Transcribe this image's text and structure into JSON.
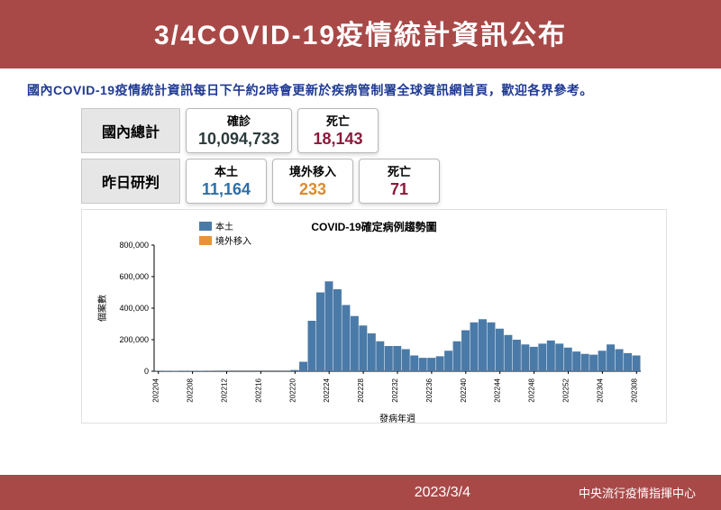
{
  "header": {
    "title": "3/4COVID-19疫情統計資訊公布"
  },
  "subtitle": "國內COVID-19疫情統計資訊每日下午約2時會更新於疾病管制署全球資訊網首頁，歡迎各界參考。",
  "totals": {
    "label": "國內總計",
    "confirmed": {
      "label": "確診",
      "value": "10,094,733",
      "color": "#2b3b3b"
    },
    "deaths": {
      "label": "死亡",
      "value": "18,143",
      "color": "#8b1a3b"
    }
  },
  "yesterday": {
    "label": "昨日研判",
    "domestic": {
      "label": "本土",
      "value": "11,164",
      "color": "#2e6fa7"
    },
    "imported": {
      "label": "境外移入",
      "value": "233",
      "color": "#d98c2b"
    },
    "deaths": {
      "label": "死亡",
      "value": "71",
      "color": "#8b1a3b"
    }
  },
  "chart": {
    "title": "COVID-19確定病例趨勢圖",
    "legend": [
      {
        "label": "本土",
        "color": "#4a7aa8"
      },
      {
        "label": "境外移入",
        "color": "#e6943a"
      }
    ],
    "ylabel": "個案數",
    "xlabel": "發病年週",
    "ylim": [
      0,
      800000
    ],
    "ytick_step": 200000,
    "bar_color": "#4a7aa8",
    "categories": [
      "202204",
      "202208",
      "202212",
      "202216",
      "202220",
      "202224",
      "202228",
      "202232",
      "202236",
      "202240",
      "202244",
      "202248",
      "202252",
      "202304",
      "202308"
    ],
    "all_bars": [
      2000,
      2500,
      3000,
      3500,
      3000,
      2500,
      2000,
      1500,
      1200,
      1000,
      900,
      900,
      900,
      900,
      1000,
      1200,
      8000,
      60000,
      320000,
      500000,
      570000,
      520000,
      420000,
      350000,
      290000,
      240000,
      190000,
      160000,
      160000,
      140000,
      100000,
      85000,
      85000,
      95000,
      130000,
      190000,
      260000,
      310000,
      330000,
      310000,
      270000,
      230000,
      200000,
      170000,
      155000,
      175000,
      195000,
      175000,
      150000,
      125000,
      110000,
      105000,
      130000,
      170000,
      140000,
      115000,
      100000
    ]
  },
  "footer": {
    "date": "2023/3/4",
    "source": "中央流行疫情指揮中心"
  },
  "colors": {
    "brand": "#a84948",
    "grid": "#e0e0e0"
  }
}
